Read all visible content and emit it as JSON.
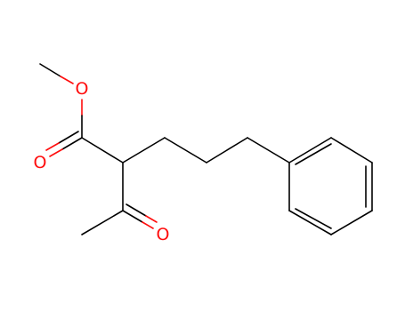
{
  "atoms": [
    {
      "label": "O"
    },
    {
      "label": "O"
    },
    {
      "label": "O"
    }
  ]
}
